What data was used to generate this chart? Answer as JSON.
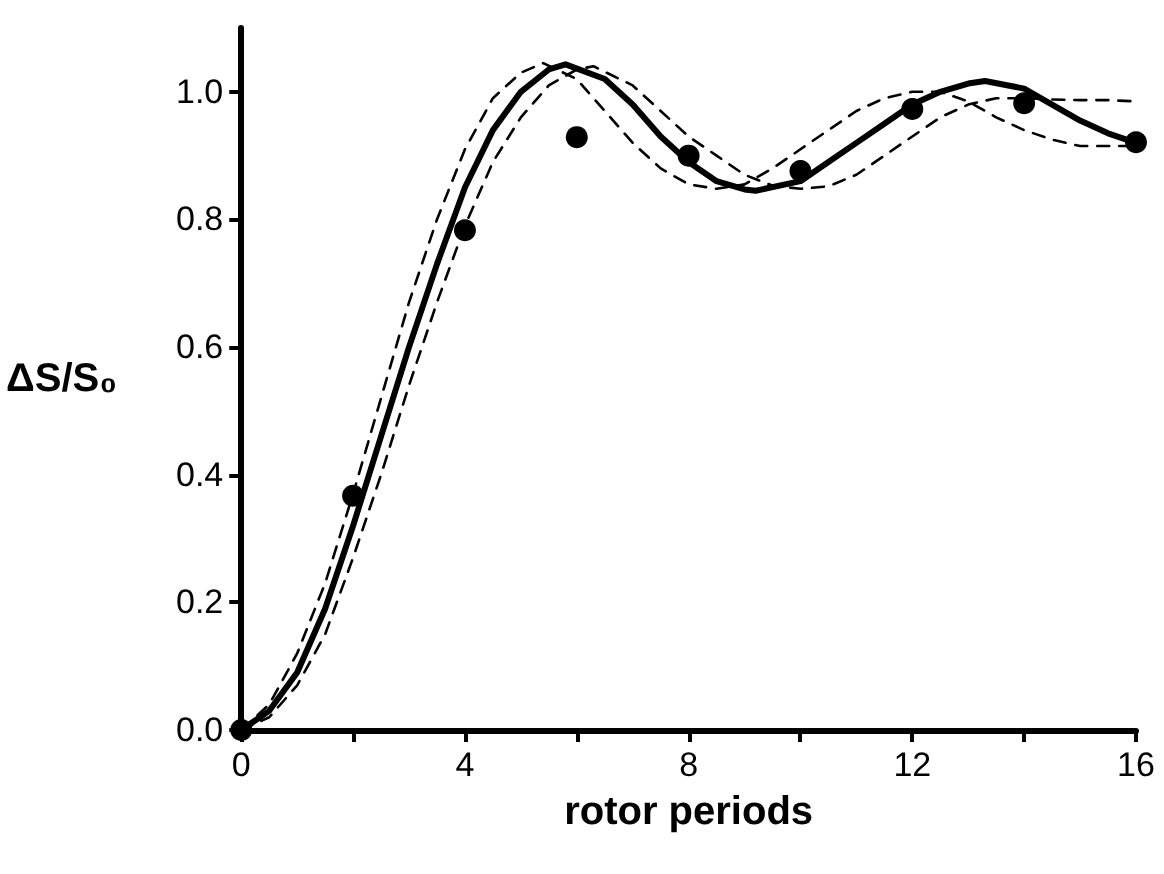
{
  "chart_data": {
    "type": "line",
    "xlabel": "rotor periods",
    "ylabel": "ΔS/S₀",
    "xlim": [
      0,
      16
    ],
    "ylim": [
      0,
      1.1
    ],
    "xticks": [
      0,
      {
        "value": 2,
        "label": null
      },
      4,
      {
        "value": 6,
        "label": null
      },
      8,
      {
        "value": 10,
        "label": null
      },
      12,
      {
        "value": 14,
        "label": null
      },
      16
    ],
    "yticks": [
      {
        "value": 0,
        "label": "0.0"
      },
      {
        "value": 0.2,
        "label": "0.2"
      },
      {
        "value": 0.4,
        "label": "0.4"
      },
      {
        "value": 0.6,
        "label": "0.6"
      },
      {
        "value": 0.8,
        "label": "0.8"
      },
      {
        "value": 1,
        "label": "1.0"
      }
    ],
    "grid": false,
    "series": [
      {
        "color": "#000000",
        "line_style": "dashed",
        "marker": "none",
        "x": [
          0,
          0.5,
          1,
          1.5,
          2,
          2.5,
          3,
          3.5,
          4,
          4.5,
          5,
          5.4,
          6,
          6.5,
          7,
          7.5,
          8,
          8.5,
          9,
          9.5,
          10,
          10.5,
          11,
          11.5,
          12,
          12.5,
          13,
          13.5,
          14,
          14.5,
          15,
          15.5,
          16
        ],
        "values": [
          0,
          0.04,
          0.12,
          0.23,
          0.37,
          0.52,
          0.67,
          0.8,
          0.91,
          0.99,
          1.03,
          1.045,
          1.02,
          0.97,
          0.92,
          0.88,
          0.855,
          0.848,
          0.855,
          0.88,
          0.91,
          0.94,
          0.97,
          0.99,
          1.0,
          1.0,
          0.985,
          0.96,
          0.94,
          0.925,
          0.915,
          0.915,
          0.915
        ]
      },
      {
        "color": "#000000",
        "line_style": "dashed",
        "marker": "none",
        "x": [
          0,
          0.5,
          1,
          1.5,
          2,
          2.5,
          3,
          3.5,
          4,
          4.5,
          5,
          5.5,
          6,
          6.3,
          7,
          7.5,
          8,
          8.5,
          9,
          9.5,
          10,
          10.5,
          11,
          11.5,
          12,
          12.5,
          13,
          13.5,
          14,
          14.5,
          15,
          15.5,
          16
        ],
        "values": [
          0,
          0.02,
          0.07,
          0.15,
          0.27,
          0.4,
          0.54,
          0.67,
          0.79,
          0.89,
          0.96,
          1.01,
          1.035,
          1.04,
          1.01,
          0.97,
          0.93,
          0.9,
          0.87,
          0.853,
          0.848,
          0.852,
          0.87,
          0.9,
          0.93,
          0.96,
          0.98,
          0.99,
          0.99,
          0.988,
          0.987,
          0.987,
          0.985
        ]
      },
      {
        "color": "#000000",
        "line_style": "solid",
        "marker": "none",
        "x": [
          0,
          0.5,
          1,
          1.5,
          2,
          2.5,
          3,
          3.5,
          4,
          4.5,
          5,
          5.5,
          5.8,
          6.5,
          7,
          7.5,
          8,
          8.5,
          9,
          9.2,
          10,
          10.5,
          11,
          11.5,
          12,
          12.5,
          13,
          13.3,
          14,
          14.5,
          15,
          15.5,
          16
        ],
        "values": [
          0,
          0.03,
          0.09,
          0.19,
          0.32,
          0.46,
          0.6,
          0.73,
          0.85,
          0.94,
          1.0,
          1.035,
          1.043,
          1.02,
          0.98,
          0.93,
          0.89,
          0.86,
          0.847,
          0.845,
          0.86,
          0.89,
          0.92,
          0.95,
          0.98,
          1.0,
          1.013,
          1.017,
          1.005,
          0.98,
          0.955,
          0.935,
          0.92
        ]
      },
      {
        "type": "scatter",
        "color": "#000000",
        "marker": "circle",
        "x": [
          0,
          2,
          4,
          6,
          8,
          10,
          12,
          14,
          16
        ],
        "values": [
          0,
          0.367,
          0.783,
          0.929,
          0.9,
          0.876,
          0.973,
          0.982,
          0.921
        ]
      }
    ]
  }
}
